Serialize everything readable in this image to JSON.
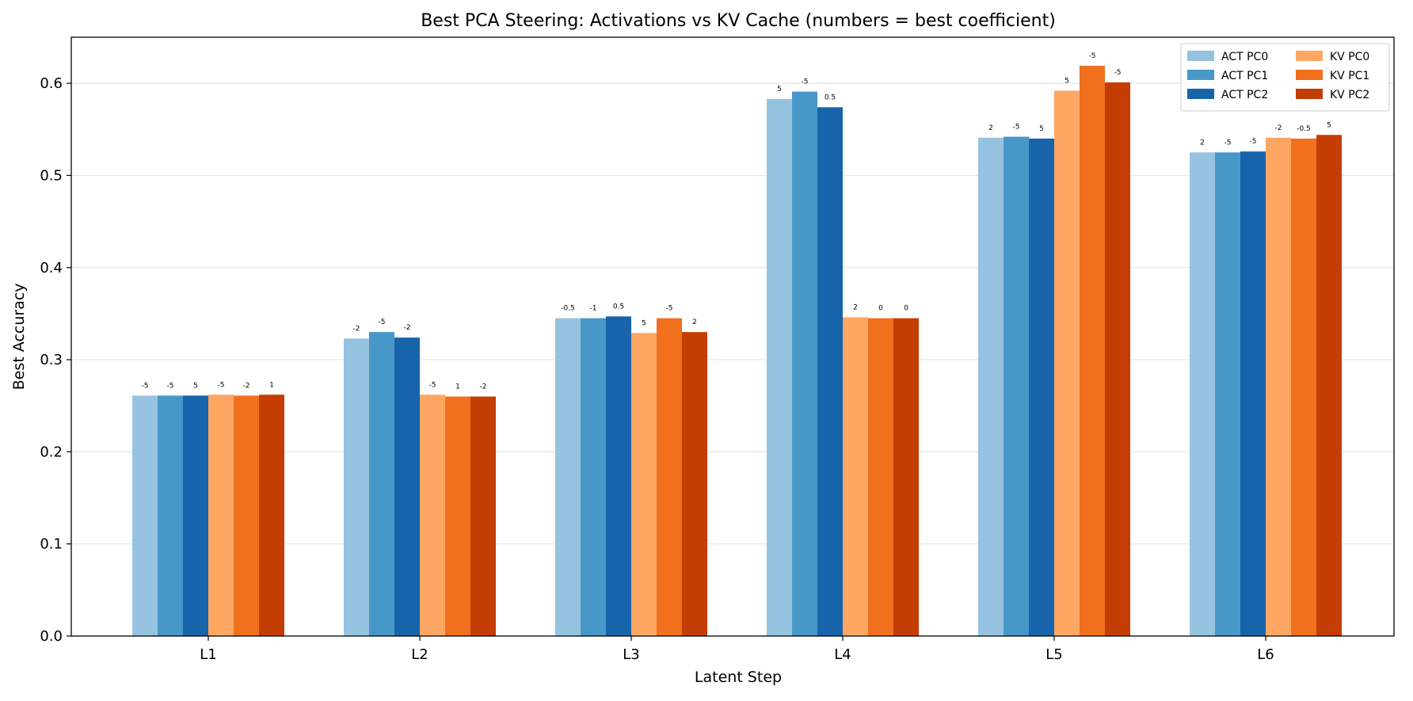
{
  "chart_data": {
    "type": "bar",
    "title": "Best PCA Steering: Activations vs KV Cache (numbers = best coefficient)",
    "xlabel": "Latent Step",
    "ylabel": "Best Accuracy",
    "ylim": [
      0,
      0.65
    ],
    "yticks": [
      0.0,
      0.1,
      0.2,
      0.3,
      0.4,
      0.5,
      0.6
    ],
    "ytick_labels": [
      "0.0",
      "0.1",
      "0.2",
      "0.3",
      "0.4",
      "0.5",
      "0.6"
    ],
    "grid": "y",
    "legend_position": "top-right",
    "legend_columns": 2,
    "categories": [
      "L1",
      "L2",
      "L3",
      "L4",
      "L5",
      "L6"
    ],
    "series": [
      {
        "name": "ACT PC0",
        "color": "#96c3df",
        "values": [
          0.261,
          0.323,
          0.345,
          0.583,
          0.541,
          0.525
        ],
        "labels": [
          "-5",
          "-2",
          "-0.5",
          "5",
          "2",
          "2"
        ]
      },
      {
        "name": "ACT PC1",
        "color": "#4897c9",
        "values": [
          0.261,
          0.33,
          0.345,
          0.591,
          0.542,
          0.525
        ],
        "labels": [
          "-5",
          "-5",
          "-1",
          "-5",
          "-5",
          "-5"
        ]
      },
      {
        "name": "ACT PC2",
        "color": "#1764aa",
        "values": [
          0.261,
          0.324,
          0.347,
          0.574,
          0.54,
          0.526
        ],
        "labels": [
          "5",
          "-2",
          "0.5",
          "0.5",
          "5",
          "-5"
        ]
      },
      {
        "name": "KV PC0",
        "color": "#fda762",
        "values": [
          0.262,
          0.262,
          0.329,
          0.346,
          0.592,
          0.541
        ],
        "labels": [
          "-5",
          "-5",
          "5",
          "2",
          "5",
          "-2"
        ]
      },
      {
        "name": "KV PC1",
        "color": "#f0701e",
        "values": [
          0.261,
          0.26,
          0.345,
          0.345,
          0.619,
          0.54
        ],
        "labels": [
          "-2",
          "1",
          "-5",
          "0",
          "-5",
          "-0.5"
        ]
      },
      {
        "name": "KV PC2",
        "color": "#c43d03",
        "values": [
          0.262,
          0.26,
          0.33,
          0.345,
          0.601,
          0.544
        ],
        "labels": [
          "1",
          "-2",
          "2",
          "0",
          "-5",
          "5"
        ]
      }
    ]
  }
}
